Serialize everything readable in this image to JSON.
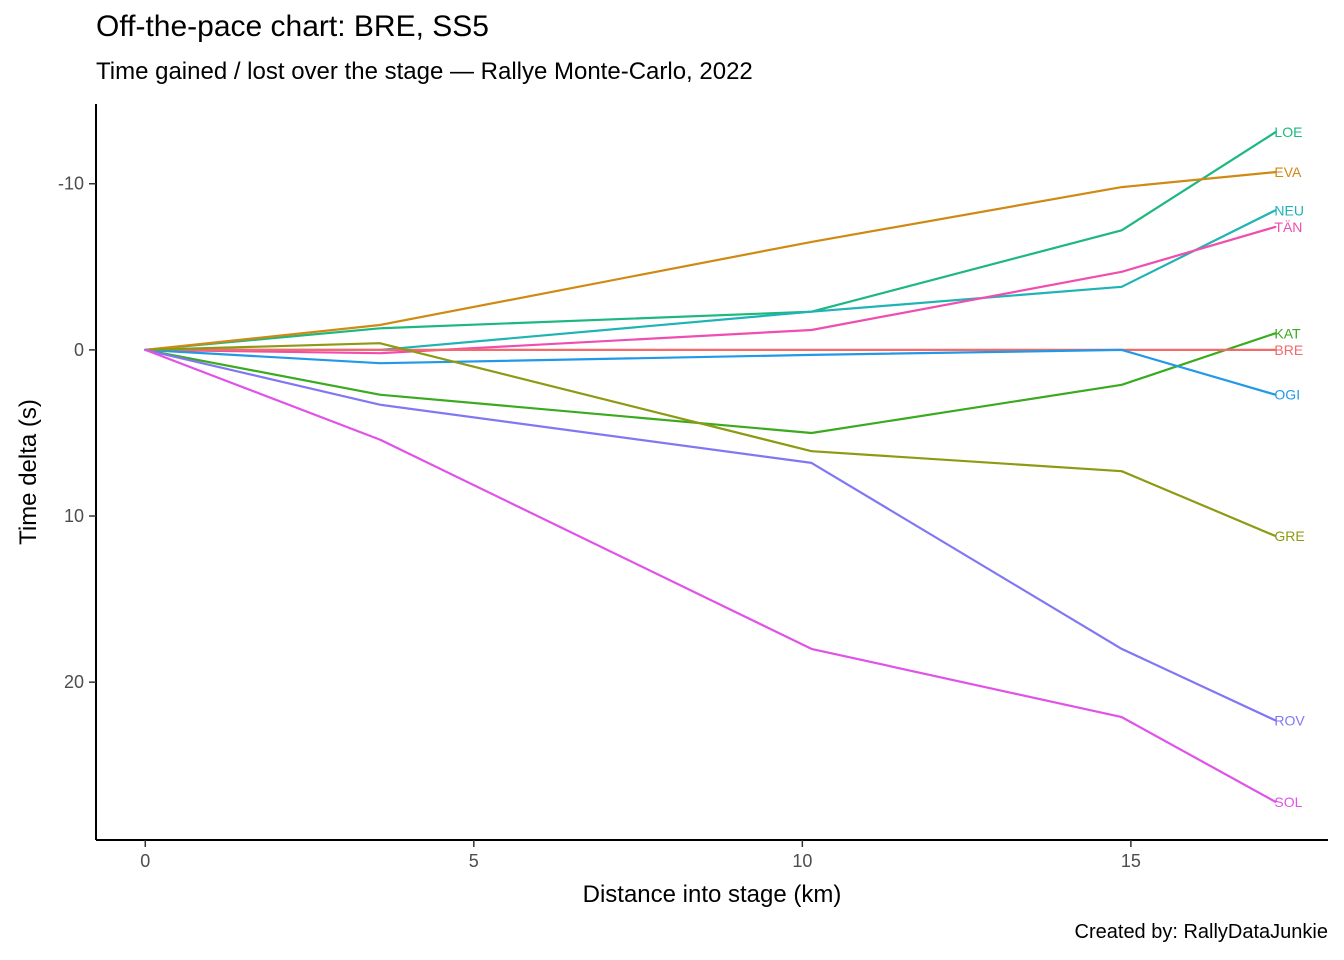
{
  "chart_data": {
    "type": "line",
    "title": "Off-the-pace chart: BRE, SS5",
    "subtitle": "Time gained / lost over the stage — Rallye Monte-Carlo, 2022",
    "caption": "Created by: RallyDataJunkie",
    "xlabel": "Distance into stage (km)",
    "ylabel": "Time delta (s)",
    "xlim": [
      -0.75,
      18.0
    ],
    "ylim": [
      29.5,
      -14.8
    ],
    "y_reversed": true,
    "x_ticks": [
      0,
      5,
      10,
      15
    ],
    "y_ticks": [
      -10,
      0,
      10,
      20
    ],
    "y_tick_labels": [
      "-10",
      "0",
      "10",
      "20"
    ],
    "grid": false,
    "legend": "none (direct labels at line ends)",
    "x": [
      0,
      3.57,
      10.14,
      14.86,
      17.2
    ],
    "series": [
      {
        "name": "LOE",
        "color": "#1DB87F",
        "values": [
          0,
          -1.3,
          -2.3,
          -7.2,
          -13.1
        ]
      },
      {
        "name": "EVA",
        "color": "#D08A14",
        "values": [
          0,
          -1.5,
          -6.5,
          -9.8,
          -10.7
        ]
      },
      {
        "name": "NEU",
        "color": "#1FB3B5",
        "values": [
          0,
          0,
          -2.3,
          -3.8,
          -8.4
        ]
      },
      {
        "name": "TÄN",
        "color": "#F04DB0",
        "values": [
          0,
          0.2,
          -1.2,
          -4.7,
          -7.4
        ]
      },
      {
        "name": "KAT",
        "color": "#3AAA1E",
        "values": [
          0,
          2.7,
          5.0,
          2.1,
          -1.0
        ]
      },
      {
        "name": "BRE",
        "color": "#F26A6A",
        "values": [
          0,
          0,
          0,
          0,
          0
        ]
      },
      {
        "name": "OGI",
        "color": "#2299E6",
        "values": [
          0,
          0.8,
          0.3,
          0,
          2.7
        ]
      },
      {
        "name": "GRE",
        "color": "#8E9A12",
        "values": [
          0,
          -0.4,
          6.1,
          7.3,
          11.2
        ]
      },
      {
        "name": "ROV",
        "color": "#8077F3",
        "values": [
          0,
          3.3,
          6.8,
          18.0,
          22.3
        ]
      },
      {
        "name": "SOL",
        "color": "#E152E8",
        "values": [
          0,
          5.4,
          18.0,
          22.1,
          27.2
        ]
      }
    ]
  }
}
